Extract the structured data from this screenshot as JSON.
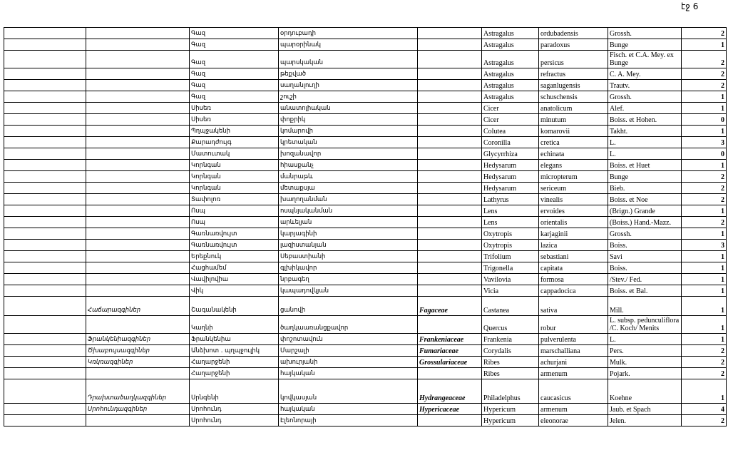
{
  "page_label": "էջ 6",
  "rows": [
    {
      "family_hy": "",
      "genus_hy": "Գազ",
      "species_hy": "օրդուբադի",
      "family_lat": "",
      "genus": "Astragalus",
      "species": "ordubadensis",
      "author": "Grossh.",
      "count": "2"
    },
    {
      "family_hy": "",
      "genus_hy": "Գազ",
      "species_hy": "պարօրինակ",
      "family_lat": "",
      "genus": "Astragalus",
      "species": "paradoxus",
      "author": "Bunge",
      "count": "1"
    },
    {
      "family_hy": "",
      "genus_hy": "Գազ",
      "species_hy": "պարսկական",
      "family_lat": "",
      "genus": "Astragalus",
      "species": "persicus",
      "author": "Fisch. et C.A. Mey. ex Bunge",
      "count": "2"
    },
    {
      "family_hy": "",
      "genus_hy": "Գազ",
      "species_hy": "թեքված",
      "family_lat": "",
      "genus": "Astragalus",
      "species": "refractus",
      "author": "C. A. Mey.",
      "count": "2"
    },
    {
      "family_hy": "",
      "genus_hy": "Գազ",
      "species_hy": "սաղանլուղի",
      "family_lat": "",
      "genus": "Astragalus",
      "species": "saganlugensis",
      "author": "Trautv.",
      "count": "2"
    },
    {
      "family_hy": "",
      "genus_hy": "Գազ",
      "species_hy": "շուշի",
      "family_lat": "",
      "genus": "Astragalus",
      "species": "schuschensis",
      "author": "Grossh.",
      "count": "1"
    },
    {
      "family_hy": "",
      "genus_hy": "Սիսեռ",
      "species_hy": "անատոլիական",
      "family_lat": "",
      "genus": "Cicer",
      "species": "anatolicum",
      "author": "Alef.",
      "count": "1"
    },
    {
      "family_hy": "",
      "genus_hy": "Սիսեռ",
      "species_hy": "փոքրիկ",
      "family_lat": "",
      "genus": "Cicer",
      "species": "minutum",
      "author": "Boiss. et Hohen.",
      "count": "0"
    },
    {
      "family_hy": "",
      "genus_hy": "Պղպջակենի",
      "species_hy": "կոմարովի",
      "family_lat": "",
      "genus": "Colutea",
      "species": "komarovii",
      "author": "Takht.",
      "count": "1"
    },
    {
      "family_hy": "",
      "genus_hy": "Քարադժույգ",
      "species_hy": "կրետական",
      "family_lat": "",
      "genus": "Coronilla",
      "species": "cretica",
      "author": "L.",
      "count": "3"
    },
    {
      "family_hy": "",
      "genus_hy": "Մատուտակ",
      "species_hy": "խոզանավոր",
      "family_lat": "",
      "genus": "Glycyrrhiza",
      "species": "echinata",
      "author": "L.",
      "count": "0"
    },
    {
      "family_hy": "",
      "genus_hy": "Կորնգան",
      "species_hy": "հիասքանչ",
      "family_lat": "",
      "genus": "Hedysarum",
      "species": "elegans",
      "author": "Boiss. et Huet",
      "count": "1"
    },
    {
      "family_hy": "",
      "genus_hy": "Կորնգան",
      "species_hy": "մանրաթև",
      "family_lat": "",
      "genus": "Hedysarum",
      "species": "micropterum",
      "author": "Bunge",
      "count": "2"
    },
    {
      "family_hy": "",
      "genus_hy": "Կորնգան",
      "species_hy": "մետաքսյա",
      "family_lat": "",
      "genus": "Hedysarum",
      "species": "sericeum",
      "author": "Bieb.",
      "count": "2"
    },
    {
      "family_hy": "",
      "genus_hy": "Տափոլոռ",
      "species_hy": "խաղողանման",
      "family_lat": "",
      "genus": "Lathyrus",
      "species": "vinealis",
      "author": "Boiss. et Noe",
      "count": "2"
    },
    {
      "family_hy": "",
      "genus_hy": "Ոսպ",
      "species_hy": "ոսպնյականման",
      "family_lat": "",
      "genus": "Lens",
      "species": "ervoides",
      "author": "(Brign.) Grande",
      "count": "1"
    },
    {
      "family_hy": "",
      "genus_hy": "Ոսպ",
      "species_hy": "արևելյան",
      "family_lat": "",
      "genus": "Lens",
      "species": "orientalis",
      "author": "(Boiss.) Hand.-Mazz.",
      "count": "2"
    },
    {
      "family_hy": "",
      "genus_hy": "Գառնառվույտ",
      "species_hy": "կարյագինի",
      "family_lat": "",
      "genus": "Oxytropis",
      "species": "karjaginii",
      "author": "Grossh.",
      "count": "1"
    },
    {
      "family_hy": "",
      "genus_hy": "Գառնառվույտ",
      "species_hy": "լազիստանյան",
      "family_lat": "",
      "genus": "Oxytropis",
      "species": "lazica",
      "author": "Boiss.",
      "count": "3"
    },
    {
      "family_hy": "",
      "genus_hy": "Երեքնուկ",
      "species_hy": "Սեբաստիանի",
      "family_lat": "",
      "genus": "Trifolium",
      "species": "sebastiani",
      "author": "Savi",
      "count": "1"
    },
    {
      "family_hy": "",
      "genus_hy": "Հացհամեմ",
      "species_hy": "գլխիկավոր",
      "family_lat": "",
      "genus": "Trigonella",
      "species": "capitata",
      "author": "Boiss.",
      "count": "1"
    },
    {
      "family_hy": "",
      "genus_hy": "Վավիլովիա",
      "species_hy": "նրբագեղ",
      "family_lat": "",
      "genus": "Vavilovia",
      "species": "formosa",
      "author": "/Stev./ Fed.",
      "count": "1"
    },
    {
      "family_hy": "",
      "genus_hy": "Վիկ",
      "species_hy": "կապադովկյան",
      "family_lat": "",
      "genus": "Vicia",
      "species": "cappadocica",
      "author": "Boiss. et Bal.",
      "count": "1"
    },
    {
      "family_hy": "Հաճարազգիներ",
      "genus_hy": "Շագանակենի",
      "species_hy": "ցանովի",
      "family_lat": "Fagaceae",
      "genus": "Castanea",
      "species": "sativa",
      "author": "Mill.",
      "count": "1"
    },
    {
      "family_hy": "",
      "genus_hy": "Կաղնի",
      "species_hy": "ծաղկաառանցքավոր",
      "family_lat": "",
      "genus": "Quercus",
      "species": "robur",
      "author": "L. subsp. pedunculiflora /C. Koch/ Menits",
      "count": "1"
    },
    {
      "family_hy": "Ֆրանկենիազգիներ",
      "genus_hy": "Ֆրանկենիա",
      "species_hy": "փոշոտավուն",
      "family_lat": "Frankeniaceae",
      "genus": "Frankenia",
      "species": "pulverulenta",
      "author": "L.",
      "count": "1"
    },
    {
      "family_hy": "Ծխաբույսազգիներ",
      "genus_hy": "Անձխոտ . պղպջուլիկ",
      "species_hy": "Մարշալի",
      "family_lat": "Fumariaceae",
      "genus": "Corydalis",
      "species": "marschalliana",
      "author": "Pers.",
      "count": "2"
    },
    {
      "family_hy": "Կռկռազգիներ",
      "genus_hy": "Հաղարջենի",
      "species_hy": "ախուրյանի",
      "family_lat": "Grossulariaceae",
      "genus": "Ribes",
      "species": "achurjani",
      "author": "Mulk.",
      "count": "2"
    },
    {
      "family_hy": "",
      "genus_hy": "Հաղարջենի",
      "species_hy": "հայկական",
      "family_lat": "",
      "genus": "Ribes",
      "species": "armenum",
      "author": "Pojark.",
      "count": "2"
    },
    {
      "family_hy": "Դրախտածաղկազգիներ",
      "genus_hy": "Սրնգենի",
      "species_hy": "կովկասյան",
      "family_lat": "Hydrangeaceae",
      "genus": "Philadelphus",
      "species": "caucasicus",
      "author": "Koehne",
      "count": "1"
    },
    {
      "family_hy": "Սրոհունդազգիներ",
      "genus_hy": "Սրոհունդ",
      "species_hy": "հայկական",
      "family_lat": "Hypericaceae",
      "genus": "Hypericum",
      "species": "armenum",
      "author": "Jaub. et Spach",
      "count": "4"
    },
    {
      "family_hy": "",
      "genus_hy": "Սրոհունդ",
      "species_hy": "Էլեոնորայի",
      "family_lat": "",
      "genus": "Hypericum",
      "species": "eleonorae",
      "author": "Jelen.",
      "count": "2"
    }
  ]
}
